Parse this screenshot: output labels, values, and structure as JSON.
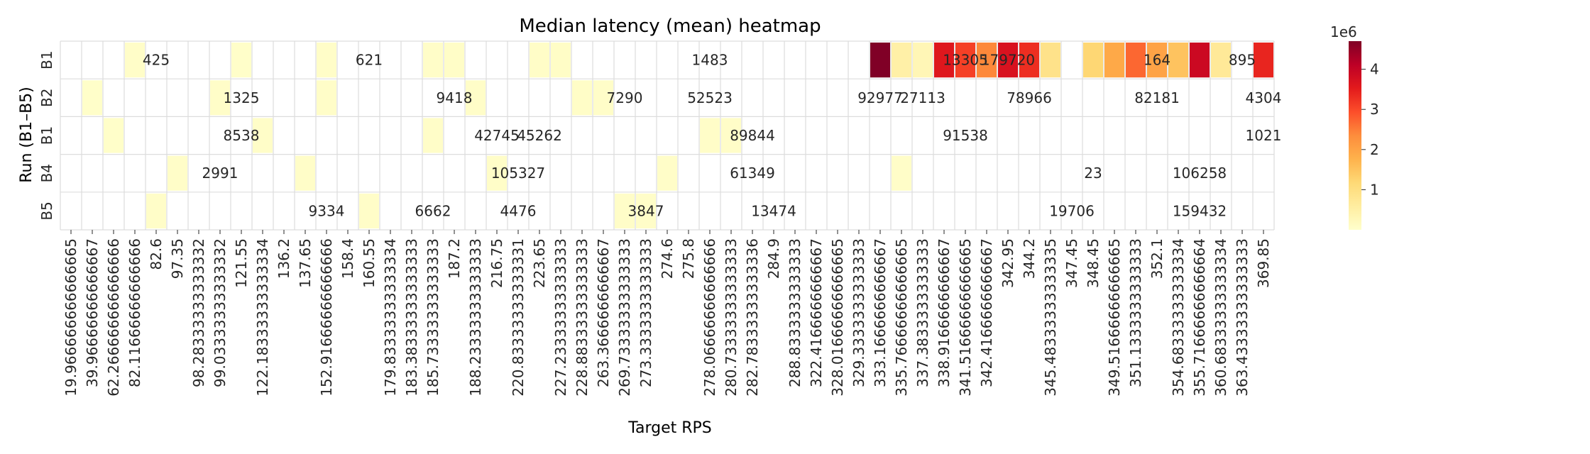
{
  "chart_data": {
    "type": "heatmap",
    "title": "Median latency (mean) heatmap",
    "xlabel": "Target RPS",
    "ylabel": "Run (B1–B5)",
    "rows": [
      "B1",
      "B2",
      "B1",
      "B4",
      "B5"
    ],
    "x_tick_labels": [
      "19.966666666666665",
      "39.96666666666667",
      "62.266666666666666",
      "82.11666666666666",
      "82.6",
      "97.35",
      "98.28333333333332",
      "99.03333333333332",
      "121.55",
      "122.18333333333334",
      "136.2",
      "137.65",
      "152.91666666666666",
      "158.4",
      "160.55",
      "179.83333333333334",
      "183.38333333333333",
      "185.73333333333333",
      "187.2",
      "188.23333333333333",
      "216.75",
      "220.83333333333331",
      "223.65",
      "227.23333333333333",
      "228.88333333333333",
      "263.3666666666667",
      "269.73333333333333",
      "273.3333333333333",
      "274.6",
      "275.8",
      "278.06666666666666",
      "280.73333333333333",
      "282.78333333333336",
      "284.9",
      "288.8333333333333",
      "322.4166666666667",
      "328.01666666666665",
      "329.3333333333333",
      "333.1666666666667",
      "335.76666666666665",
      "337.3833333333333",
      "338.9166666666667",
      "341.51666666666665",
      "342.4166666666667",
      "342.95",
      "344.2",
      "345.48333333333335",
      "347.45",
      "348.45",
      "349.51666666666665",
      "351.1333333333333",
      "352.1",
      "354.68333333333334",
      "355.71666666666664",
      "360.68333333333334",
      "363.43333333333333",
      "369.85"
    ],
    "colorbar": {
      "ticks": [
        1,
        2,
        3,
        4
      ],
      "exponent": "1e6",
      "range": [
        0,
        4700000
      ],
      "colormap": "YlOrRd"
    },
    "visible_annotations": [
      {
        "row": 0,
        "x": 82.6,
        "value": 425
      },
      {
        "row": 0,
        "x": 160.55,
        "value": 621
      },
      {
        "row": 0,
        "x": 278.07,
        "value": 1483
      },
      {
        "row": 0,
        "x": 341.52,
        "value": 13305
      },
      {
        "row": 0,
        "x": 342.95,
        "value": 179720
      },
      {
        "row": 0,
        "x": 352.1,
        "value": 164
      },
      {
        "row": 0,
        "x": 363.43,
        "value": 895
      },
      {
        "row": 1,
        "x": 121.55,
        "value": 1325
      },
      {
        "row": 1,
        "x": 187.2,
        "value": 9418
      },
      {
        "row": 1,
        "x": 269.73,
        "value": 7290
      },
      {
        "row": 1,
        "x": 278.07,
        "value": 52523
      },
      {
        "row": 1,
        "x": 333.17,
        "value": 92977
      },
      {
        "row": 1,
        "x": 337.38,
        "value": 27113
      },
      {
        "row": 1,
        "x": 344.2,
        "value": 78966
      },
      {
        "row": 1,
        "x": 352.1,
        "value": 82181
      },
      {
        "row": 1,
        "x": 369.85,
        "value": 4304
      },
      {
        "row": 2,
        "x": 121.55,
        "value": 8538
      },
      {
        "row": 2,
        "x": 216.75,
        "value": 42745
      },
      {
        "row": 2,
        "x": 223.65,
        "value": 45262
      },
      {
        "row": 2,
        "x": 282.78,
        "value": 89844
      },
      {
        "row": 2,
        "x": 341.52,
        "value": 91538
      },
      {
        "row": 2,
        "x": 369.85,
        "value": 1021
      },
      {
        "row": 3,
        "x": 99.03,
        "value": 2991
      },
      {
        "row": 3,
        "x": 220.83,
        "value": 105327
      },
      {
        "row": 3,
        "x": 282.78,
        "value": 61349
      },
      {
        "row": 3,
        "x": 348.45,
        "value": 23
      },
      {
        "row": 3,
        "x": 355.72,
        "value": 106258
      },
      {
        "row": 4,
        "x": 152.92,
        "value": 9334
      },
      {
        "row": 4,
        "x": 185.73,
        "value": 6662
      },
      {
        "row": 4,
        "x": 220.83,
        "value": 4476
      },
      {
        "row": 4,
        "x": 273.33,
        "value": 3847
      },
      {
        "row": 4,
        "x": 284.9,
        "value": 13474
      },
      {
        "row": 4,
        "x": 347.45,
        "value": 19706
      },
      {
        "row": 4,
        "x": 355.72,
        "value": 159432
      }
    ],
    "heat_cells": [
      {
        "row": 0,
        "col": 3,
        "value": 60000
      },
      {
        "row": 0,
        "col": 8,
        "value": 45000
      },
      {
        "row": 0,
        "col": 12,
        "value": 55000
      },
      {
        "row": 0,
        "col": 17,
        "value": 50000
      },
      {
        "row": 0,
        "col": 18,
        "value": 70000
      },
      {
        "row": 0,
        "col": 22,
        "value": 65000
      },
      {
        "row": 0,
        "col": 23,
        "value": 75000
      },
      {
        "row": 0,
        "col": 38,
        "value": 4700000
      },
      {
        "row": 0,
        "col": 39,
        "value": 500000
      },
      {
        "row": 0,
        "col": 40,
        "value": 300000
      },
      {
        "row": 0,
        "col": 41,
        "value": 3600000
      },
      {
        "row": 0,
        "col": 42,
        "value": 3100000
      },
      {
        "row": 0,
        "col": 43,
        "value": 2400000
      },
      {
        "row": 0,
        "col": 44,
        "value": 3700000
      },
      {
        "row": 0,
        "col": 45,
        "value": 3300000
      },
      {
        "row": 0,
        "col": 46,
        "value": 900000
      },
      {
        "row": 0,
        "col": 48,
        "value": 1200000
      },
      {
        "row": 0,
        "col": 49,
        "value": 1900000
      },
      {
        "row": 0,
        "col": 50,
        "value": 2700000
      },
      {
        "row": 0,
        "col": 51,
        "value": 2000000
      },
      {
        "row": 0,
        "col": 52,
        "value": 1500000
      },
      {
        "row": 0,
        "col": 53,
        "value": 3900000
      },
      {
        "row": 0,
        "col": 54,
        "value": 700000
      },
      {
        "row": 0,
        "col": 56,
        "value": 3400000
      },
      {
        "row": 1,
        "col": 1,
        "value": 40000
      },
      {
        "row": 1,
        "col": 7,
        "value": 55000
      },
      {
        "row": 1,
        "col": 12,
        "value": 50000
      },
      {
        "row": 1,
        "col": 19,
        "value": 60000
      },
      {
        "row": 1,
        "col": 24,
        "value": 65000
      },
      {
        "row": 1,
        "col": 25,
        "value": 50000
      },
      {
        "row": 2,
        "col": 2,
        "value": 45000
      },
      {
        "row": 2,
        "col": 9,
        "value": 55000
      },
      {
        "row": 2,
        "col": 17,
        "value": 50000
      },
      {
        "row": 2,
        "col": 30,
        "value": 60000
      },
      {
        "row": 2,
        "col": 31,
        "value": 55000
      },
      {
        "row": 3,
        "col": 5,
        "value": 50000
      },
      {
        "row": 3,
        "col": 11,
        "value": 55000
      },
      {
        "row": 3,
        "col": 20,
        "value": 60000
      },
      {
        "row": 3,
        "col": 28,
        "value": 55000
      },
      {
        "row": 3,
        "col": 39,
        "value": 60000
      },
      {
        "row": 4,
        "col": 4,
        "value": 50000
      },
      {
        "row": 4,
        "col": 14,
        "value": 55000
      },
      {
        "row": 4,
        "col": 26,
        "value": 60000
      },
      {
        "row": 4,
        "col": 27,
        "value": 55000
      }
    ]
  }
}
